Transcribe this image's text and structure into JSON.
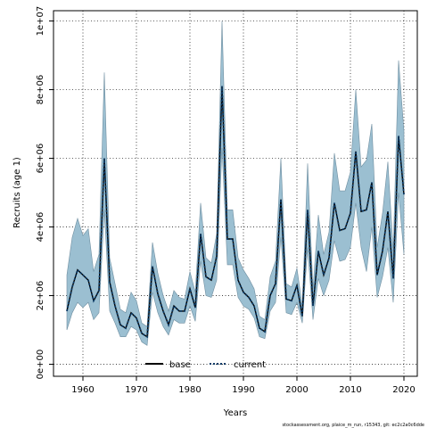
{
  "chart_data": {
    "type": "line",
    "xlabel": "Years",
    "ylabel": "Recruits (age 1)",
    "xlim": [
      1954.5,
      2022.5
    ],
    "ylim": [
      -350000,
      10300000
    ],
    "x_ticks": [
      1960,
      1970,
      1980,
      1990,
      2000,
      2010,
      2020
    ],
    "y_ticks": [
      {
        "value": 0,
        "label": "0e+00"
      },
      {
        "value": 2000000,
        "label": "2e+06"
      },
      {
        "value": 4000000,
        "label": "4e+06"
      },
      {
        "value": 6000000,
        "label": "6e+06"
      },
      {
        "value": 8000000,
        "label": "8e+06"
      },
      {
        "value": 10000000,
        "label": "1e+07"
      }
    ],
    "grid": "dotted",
    "legend_position": "bottom-center",
    "band_color": "#9bbfd1",
    "band_edge_color": "#6f8ea0",
    "years": [
      1957,
      1958,
      1959,
      1960,
      1961,
      1962,
      1963,
      1964,
      1965,
      1966,
      1967,
      1968,
      1969,
      1970,
      1971,
      1972,
      1973,
      1974,
      1975,
      1976,
      1977,
      1978,
      1979,
      1980,
      1981,
      1982,
      1983,
      1984,
      1985,
      1986,
      1987,
      1988,
      1989,
      1990,
      1991,
      1992,
      1993,
      1994,
      1995,
      1996,
      1997,
      1998,
      1999,
      2000,
      2001,
      2002,
      2003,
      2004,
      2005,
      2006,
      2007,
      2008,
      2009,
      2010,
      2011,
      2012,
      2013,
      2014,
      2015,
      2016,
      2017,
      2018,
      2019,
      2020
    ],
    "upper": [
      2600000,
      3700000,
      4250000,
      3750000,
      3950000,
      2700000,
      3200000,
      8500000,
      3100000,
      2350000,
      1600000,
      1500000,
      2100000,
      1850000,
      1200000,
      1100000,
      3550000,
      2650000,
      2000000,
      1550000,
      2150000,
      1950000,
      1900000,
      2700000,
      2100000,
      4700000,
      3100000,
      2950000,
      3800000,
      10000000,
      4500000,
      4500000,
      3100000,
      2750000,
      2500000,
      2200000,
      1400000,
      1300000,
      2550000,
      3000000,
      6000000,
      2350000,
      2250000,
      2800000,
      1700000,
      5850000,
      2200000,
      4350000,
      3200000,
      3850000,
      6150000,
      5050000,
      5050000,
      5600000,
      8000000,
      5750000,
      5950000,
      7000000,
      3400000,
      4400000,
      5900000,
      3300000,
      8850000,
      6800000
    ],
    "median": [
      1550000,
      2250000,
      2750000,
      2600000,
      2450000,
      1850000,
      2150000,
      6000000,
      2400000,
      1700000,
      1150000,
      1050000,
      1500000,
      1350000,
      900000,
      800000,
      2850000,
      2050000,
      1550000,
      1150000,
      1700000,
      1550000,
      1550000,
      2200000,
      1650000,
      3800000,
      2550000,
      2450000,
      3150000,
      8100000,
      3650000,
      3650000,
      2450000,
      2100000,
      1950000,
      1700000,
      1050000,
      950000,
      2000000,
      2350000,
      4800000,
      1900000,
      1850000,
      2300000,
      1400000,
      4500000,
      1700000,
      3300000,
      2600000,
      3100000,
      4700000,
      3900000,
      3950000,
      4400000,
      6200000,
      4450000,
      4500000,
      5300000,
      2600000,
      3300000,
      4450000,
      2500000,
      6650000,
      4950000
    ],
    "lower": [
      1000000,
      1500000,
      1800000,
      1650000,
      1800000,
      1300000,
      1500000,
      4500000,
      1550000,
      1200000,
      800000,
      800000,
      1100000,
      1000000,
      650000,
      550000,
      2100000,
      1500000,
      1100000,
      850000,
      1300000,
      1200000,
      1200000,
      1700000,
      1250000,
      3000000,
      2000000,
      1950000,
      2450000,
      6300000,
      2900000,
      2900000,
      1950000,
      1700000,
      1600000,
      1350000,
      800000,
      750000,
      1550000,
      1800000,
      3700000,
      1500000,
      1450000,
      1800000,
      1200000,
      3400000,
      1300000,
      2500000,
      2000000,
      2450000,
      3600000,
      3000000,
      3050000,
      3400000,
      4700000,
      3400000,
      2700000,
      4000000,
      1950000,
      2550000,
      3400000,
      1800000,
      5000000,
      3200000
    ]
  },
  "legend": {
    "items": [
      {
        "label": "base",
        "color": "#000000",
        "style": "solid"
      },
      {
        "label": "current",
        "color": "#0b3a66",
        "style": "dotted"
      }
    ]
  },
  "footer": {
    "text": "stockassessment.org, plaice_m_run, r15343, git: ec2c2a0c6dde"
  }
}
